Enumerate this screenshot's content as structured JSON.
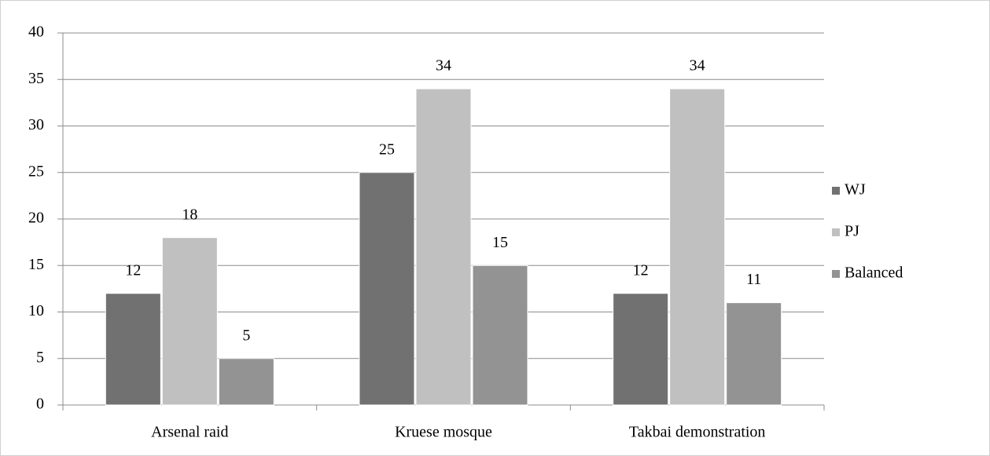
{
  "chart_data": {
    "type": "bar",
    "categories": [
      "Arsenal raid",
      "Kruese mosque",
      "Takbai demonstration"
    ],
    "series": [
      {
        "name": "WJ",
        "color": "#717171",
        "values": [
          12,
          25,
          12
        ]
      },
      {
        "name": "PJ",
        "color": "#c0c0c0",
        "values": [
          18,
          34,
          34
        ]
      },
      {
        "name": "Balanced",
        "color": "#939393",
        "values": [
          5,
          15,
          11
        ]
      }
    ],
    "ylim": [
      0,
      40
    ],
    "yticks": [
      0,
      5,
      10,
      15,
      20,
      25,
      30,
      35,
      40
    ],
    "grid": true,
    "legend": "right"
  }
}
